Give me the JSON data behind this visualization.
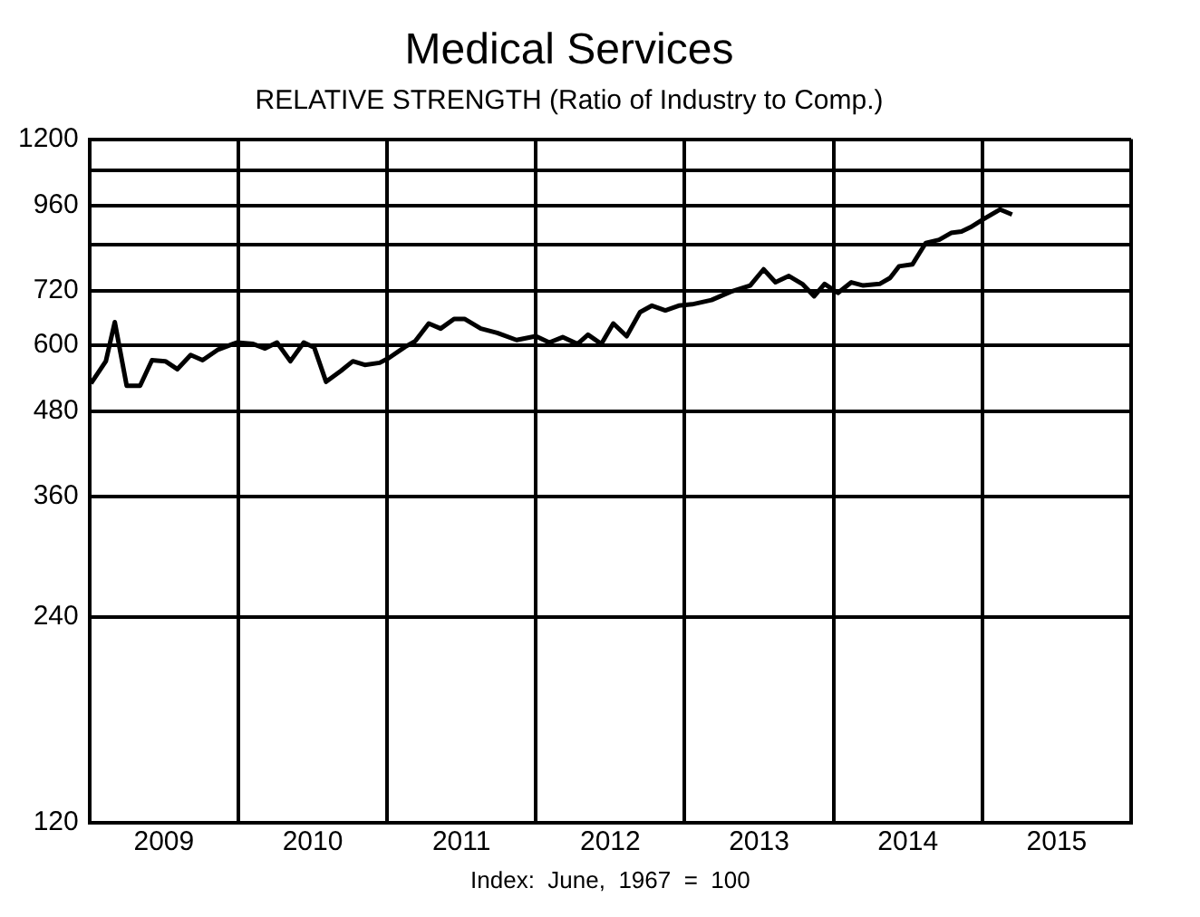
{
  "chart_data": {
    "type": "line",
    "title": "Medical Services",
    "subtitle": "RELATIVE STRENGTH (Ratio of Industry to Comp.)",
    "annotations": [
      "Index:  June,  1967  =  100"
    ],
    "x": [
      2009.01,
      2009.11,
      2009.17,
      2009.25,
      2009.34,
      2009.42,
      2009.51,
      2009.59,
      2009.68,
      2009.76,
      2009.86,
      2009.99,
      2010.1,
      2010.18,
      2010.26,
      2010.35,
      2010.44,
      2010.51,
      2010.59,
      2010.69,
      2010.77,
      2010.85,
      2010.95,
      2011.01,
      2011.12,
      2011.19,
      2011.28,
      2011.36,
      2011.45,
      2011.52,
      2011.63,
      2011.74,
      2011.87,
      2012.0,
      2012.09,
      2012.18,
      2012.28,
      2012.35,
      2012.44,
      2012.52,
      2012.61,
      2012.7,
      2012.78,
      2012.87,
      2012.96,
      2013.05,
      2013.18,
      2013.31,
      2013.44,
      2013.53,
      2013.61,
      2013.7,
      2013.79,
      2013.87,
      2013.94,
      2014.03,
      2014.12,
      2014.2,
      2014.31,
      2014.38,
      2014.44,
      2014.53,
      2014.62,
      2014.71,
      2014.79,
      2014.86,
      2014.92,
      2015.01,
      2015.12,
      2015.2
    ],
    "series": [
      {
        "color": "#000000",
        "values": [
          527,
          568,
          648,
          523,
          523,
          570,
          568,
          553,
          580,
          570,
          590,
          605,
          602,
          593,
          605,
          568,
          605,
          595,
          530,
          550,
          568,
          561,
          565,
          574,
          596,
          608,
          645,
          634,
          655,
          655,
          634,
          625,
          610,
          618,
          605,
          616,
          602,
          621,
          602,
          645,
          618,
          670,
          685,
          674,
          685,
          688,
          698,
          718,
          733,
          774,
          741,
          757,
          737,
          707,
          737,
          715,
          741,
          733,
          737,
          752,
          782,
          787,
          846,
          855,
          875,
          879,
          892,
          917,
          947,
          931
        ]
      }
    ],
    "xlim": [
      2009,
      2016
    ],
    "xticks": [
      {
        "value": 2009,
        "label": null
      },
      {
        "value": 2009.5,
        "label": "2009"
      },
      {
        "value": 2010,
        "label": null
      },
      {
        "value": 2010.5,
        "label": "2010"
      },
      {
        "value": 2011,
        "label": null
      },
      {
        "value": 2011.5,
        "label": "2011"
      },
      {
        "value": 2012,
        "label": null
      },
      {
        "value": 2012.5,
        "label": "2012"
      },
      {
        "value": 2013,
        "label": null
      },
      {
        "value": 2013.5,
        "label": "2013"
      },
      {
        "value": 2014,
        "label": null
      },
      {
        "value": 2014.5,
        "label": "2014"
      },
      {
        "value": 2015,
        "label": null
      },
      {
        "value": 2015.5,
        "label": "2015"
      },
      {
        "value": 2016,
        "label": null
      }
    ],
    "ylim": [
      120,
      1200
    ],
    "yticks": [
      120,
      240,
      360,
      480,
      600,
      720,
      {
        "value": 840,
        "label": null
      },
      960,
      {
        "value": 1080,
        "label": null
      },
      1200
    ],
    "log": "y",
    "grid": true,
    "legend": false,
    "marker": "none",
    "line_style": "solid"
  }
}
